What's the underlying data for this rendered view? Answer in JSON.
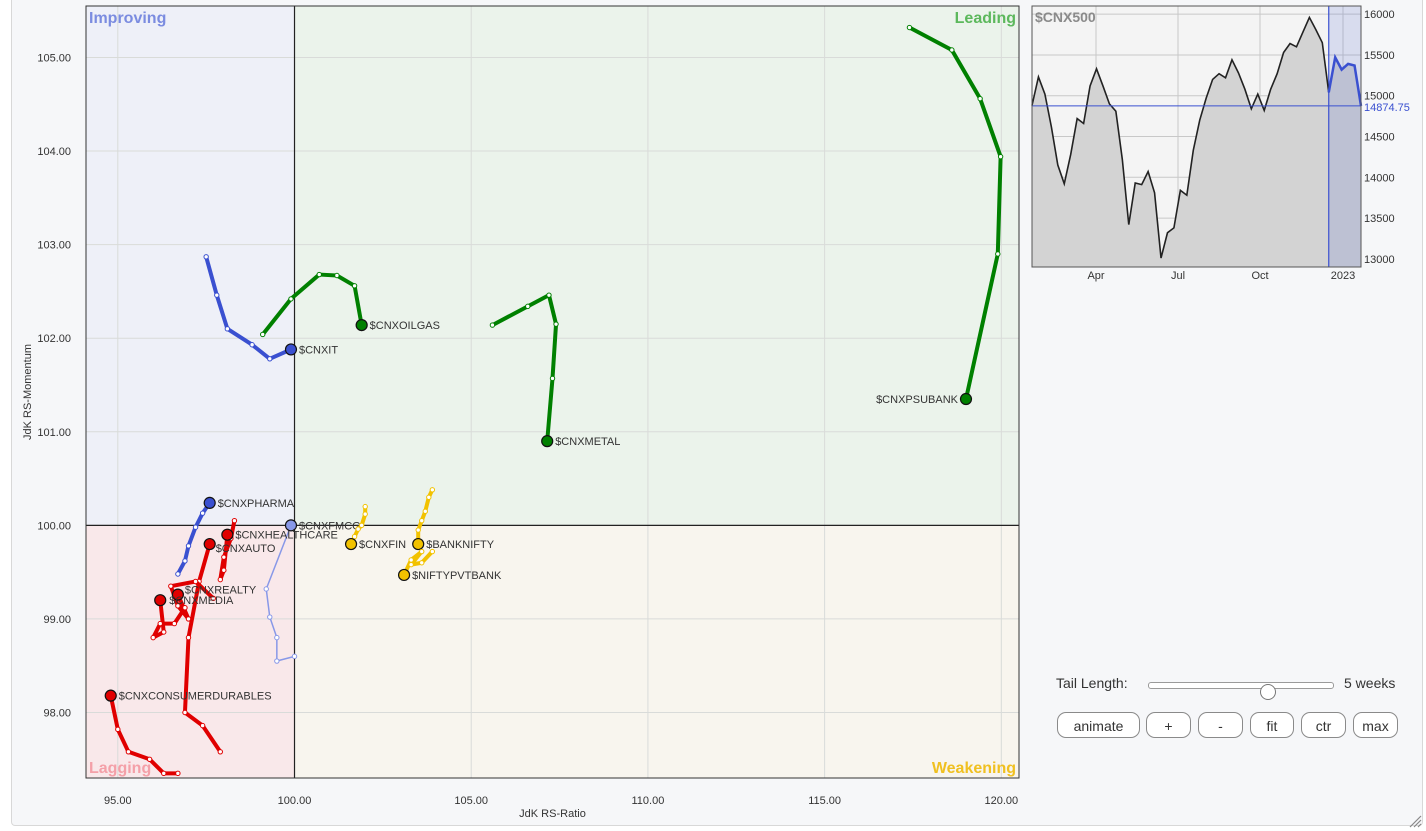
{
  "chart_data": [
    {
      "type": "scatter",
      "subtype": "relative-rotation-graph",
      "xlabel": "JdK RS-Ratio",
      "ylabel": "JdK RS-Momentum",
      "xlim": [
        94.1,
        120.5
      ],
      "ylim": [
        97.3,
        105.55
      ],
      "xticks": [
        "95.00",
        "100.00",
        "105.00",
        "110.00",
        "115.00",
        "120.00"
      ],
      "yticks": [
        "98.00",
        "99.00",
        "100.00",
        "101.00",
        "102.00",
        "103.00",
        "104.00",
        "105.00"
      ],
      "center": [
        100,
        100
      ],
      "grid": true,
      "quadrants": [
        {
          "label": "Improving",
          "position": "top-left",
          "color": "#7b8ce0",
          "fill": "#eef0f8"
        },
        {
          "label": "Leading",
          "position": "top-right",
          "color": "#5cb85c",
          "fill": "#ebf3eb"
        },
        {
          "label": "Lagging",
          "position": "bottom-left",
          "color": "#f4a0a8",
          "fill": "#f9e8ea"
        },
        {
          "label": "Weakening",
          "position": "bottom-right",
          "color": "#f0c020",
          "fill": "#f8f5ee"
        }
      ],
      "series": [
        {
          "name": "$CNXPSUBANK",
          "color": "#008000",
          "x": [
            117.4,
            118.6,
            119.4,
            119.98,
            119.9,
            119.0
          ],
          "y": [
            105.32,
            105.08,
            104.56,
            103.94,
            102.9,
            101.35
          ]
        },
        {
          "name": "$CNXMETAL",
          "color": "#008000",
          "x": [
            105.6,
            106.6,
            107.2,
            107.4,
            107.3,
            107.15
          ],
          "y": [
            102.14,
            102.34,
            102.46,
            102.15,
            101.57,
            100.9
          ]
        },
        {
          "name": "$CNXOILGAS",
          "color": "#008000",
          "x": [
            99.1,
            99.9,
            100.7,
            101.2,
            101.7,
            101.9
          ],
          "y": [
            102.04,
            102.42,
            102.68,
            102.67,
            102.56,
            102.14
          ]
        },
        {
          "name": "$CNXIT",
          "color": "#3a50d0",
          "x": [
            97.5,
            97.8,
            98.1,
            98.8,
            99.3,
            99.9
          ],
          "y": [
            102.87,
            102.46,
            102.1,
            101.93,
            101.78,
            101.88
          ]
        },
        {
          "name": "$CNXPHARMA",
          "color": "#3a50d0",
          "x": [
            96.7,
            96.9,
            97.0,
            97.2,
            97.4,
            97.6
          ],
          "y": [
            99.48,
            99.62,
            99.78,
            99.98,
            100.13,
            100.24
          ]
        },
        {
          "name": "$CNXFMCG",
          "color": "#8898e8",
          "x": [
            100.0,
            99.5,
            99.5,
            99.3,
            99.2,
            99.9
          ],
          "y": [
            98.6,
            98.55,
            98.8,
            99.02,
            99.32,
            100.0
          ]
        },
        {
          "name": "$CNXHEALTHCARE",
          "color": "#e00000",
          "x": [
            98.3,
            98.2,
            98.0,
            97.9,
            98.0,
            98.1
          ],
          "y": [
            100.05,
            99.86,
            99.66,
            99.42,
            99.52,
            99.9
          ]
        },
        {
          "name": "$CNXAUTO",
          "color": "#e00000",
          "x": [
            97.9,
            97.4,
            96.9,
            97.0,
            97.3,
            97.6
          ],
          "y": [
            97.58,
            97.86,
            98.0,
            98.8,
            99.4,
            99.8
          ]
        },
        {
          "name": "$CNXREALTY",
          "color": "#e00000",
          "x": [
            97.7,
            97.2,
            96.5,
            96.7,
            97.0,
            96.7
          ],
          "y": [
            99.22,
            99.4,
            99.35,
            99.14,
            99.0,
            99.26
          ]
        },
        {
          "name": "$CNXMEDIA",
          "color": "#e00000",
          "x": [
            96.9,
            96.6,
            96.2,
            96.0,
            96.3,
            96.2
          ],
          "y": [
            99.12,
            98.95,
            98.95,
            98.8,
            98.86,
            99.2
          ]
        },
        {
          "name": "$CNXCONSUMERDURABLES",
          "color": "#e00000",
          "x": [
            96.7,
            96.3,
            95.9,
            95.3,
            95.0,
            94.8
          ],
          "y": [
            97.35,
            97.35,
            97.5,
            97.58,
            97.82,
            98.18
          ]
        },
        {
          "name": "$CNXFIN",
          "color": "#f2c200",
          "x": [
            102.0,
            102.0,
            101.9,
            101.8,
            101.7,
            101.6
          ],
          "y": [
            100.2,
            100.12,
            100.0,
            99.96,
            99.88,
            99.8
          ]
        },
        {
          "name": "$BANKNIFTY",
          "color": "#f2c200",
          "x": [
            103.9,
            103.8,
            103.7,
            103.6,
            103.5,
            103.5
          ],
          "y": [
            100.38,
            100.3,
            100.15,
            100.05,
            99.95,
            99.8
          ]
        },
        {
          "name": "$NIFTYPVTBANK",
          "color": "#f2c200",
          "x": [
            103.9,
            103.6,
            103.3,
            103.6,
            103.3,
            103.1
          ],
          "y": [
            99.72,
            99.6,
            99.58,
            99.72,
            99.63,
            99.47
          ]
        }
      ]
    },
    {
      "type": "area",
      "title": "$CNX500",
      "xticks": [
        "Apr",
        "Jul",
        "Oct",
        "2023"
      ],
      "yticks": [
        "13000",
        "13500",
        "14000",
        "14500",
        "15000",
        "15500",
        "16000"
      ],
      "ylim": [
        12900,
        16100
      ],
      "last_value": "14874.75",
      "reference": 14874.75,
      "grid": true,
      "points": [
        14880,
        15230,
        15020,
        14620,
        14150,
        13920,
        14280,
        14720,
        14660,
        15120,
        15330,
        15120,
        14900,
        14810,
        14220,
        13420,
        13930,
        13910,
        14070,
        13810,
        13010,
        13320,
        13380,
        13840,
        13780,
        14330,
        14700,
        14970,
        15200,
        15270,
        15220,
        15440,
        15280,
        15080,
        14840,
        15020,
        14820,
        15080,
        15270,
        15530,
        15640,
        15600,
        15780,
        15960,
        15810,
        15650,
        15040,
        15470,
        15320,
        15390,
        15370,
        14875
      ],
      "highlight_from_index": 46
    }
  ],
  "controls": {
    "tail_label": "Tail Length:",
    "tail_value": "5 weeks",
    "tail_weeks": 5,
    "buttons": {
      "animate": "animate",
      "plus": "+",
      "minus": "-",
      "fit": "fit",
      "ctr": "ctr",
      "max": "max"
    }
  }
}
